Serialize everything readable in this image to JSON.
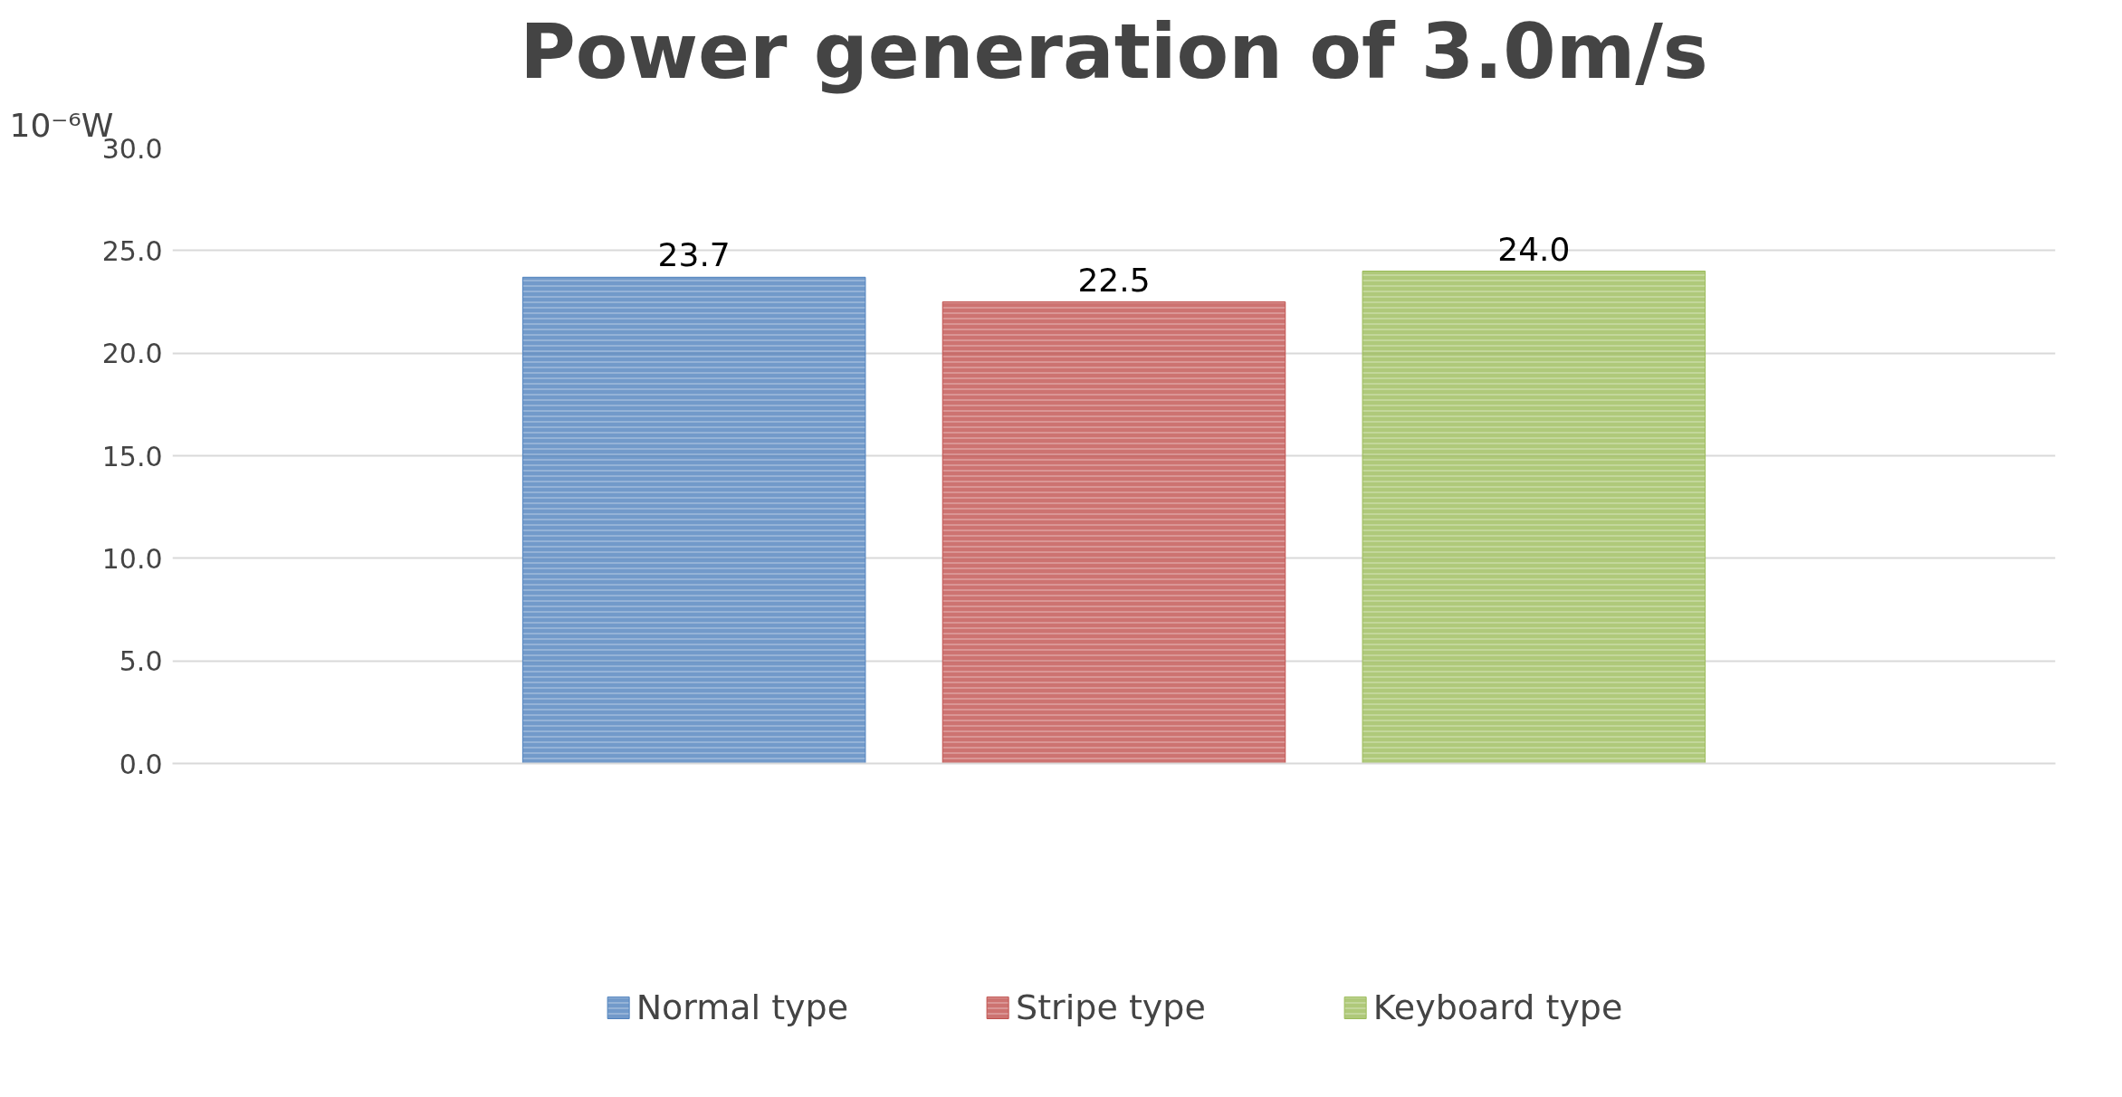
{
  "chart_data": {
    "type": "bar",
    "title": "Power generation of 3.0m/s",
    "ylabel": "10⁻⁶W",
    "categories": [
      null
    ],
    "series": [
      {
        "name": "Normal type",
        "color": "#4f81bd",
        "values": [
          23.7
        ],
        "value_labels": [
          "23.7"
        ]
      },
      {
        "name": "Stripe type",
        "color": "#c0504d",
        "values": [
          22.5
        ],
        "value_labels": [
          "22.5"
        ]
      },
      {
        "name": "Keyboard type",
        "color": "#9bbb59",
        "values": [
          24.0
        ],
        "value_labels": [
          "24.0"
        ]
      }
    ],
    "ylim": [
      0,
      30
    ],
    "yticks": [
      {
        "value": 0,
        "label": "0.0"
      },
      {
        "value": 5,
        "label": "5.0"
      },
      {
        "value": 10,
        "label": "10.0"
      },
      {
        "value": 15,
        "label": "15.0"
      },
      {
        "value": 20,
        "label": "20.0"
      },
      {
        "value": 25,
        "label": "25.0"
      },
      {
        "value": 30,
        "label": "30.0"
      }
    ],
    "grid": "y",
    "legend": "bottom"
  }
}
